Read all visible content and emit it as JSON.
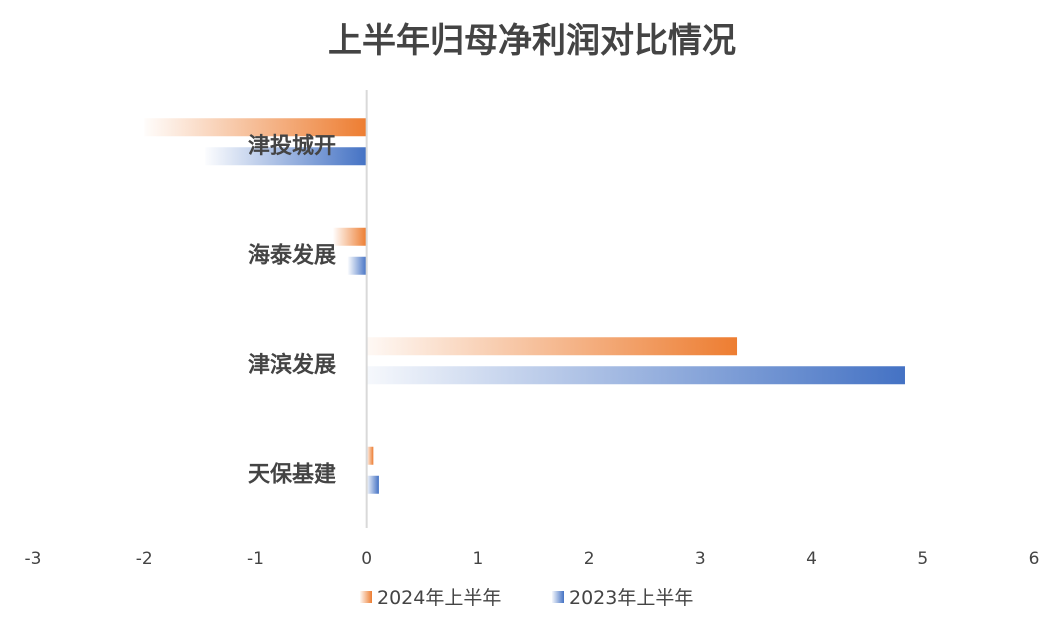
{
  "chart_data": {
    "type": "bar",
    "orientation": "horizontal",
    "title": "上半年归母净利润对比情况",
    "categories": [
      "津投城开",
      "海泰发展",
      "津滨发展",
      "天保基建"
    ],
    "series": [
      {
        "name": "2024年上半年",
        "values": [
          -2.0,
          -0.3,
          3.33,
          0.06
        ]
      },
      {
        "name": "2023年上半年",
        "values": [
          -1.45,
          -0.17,
          4.84,
          0.11
        ]
      }
    ],
    "xlim": [
      -3,
      6
    ],
    "xticks": [
      "-3",
      "-2",
      "-1",
      "0",
      "1",
      "2",
      "3",
      "4",
      "5",
      "6"
    ],
    "xlabel": "",
    "ylabel": "",
    "grid": false,
    "legend_position": "bottom",
    "colors": {
      "2024年上半年": "#ED7D31",
      "2023年上半年": "#4472C4"
    },
    "fill_style": "gradient-from-zero"
  }
}
